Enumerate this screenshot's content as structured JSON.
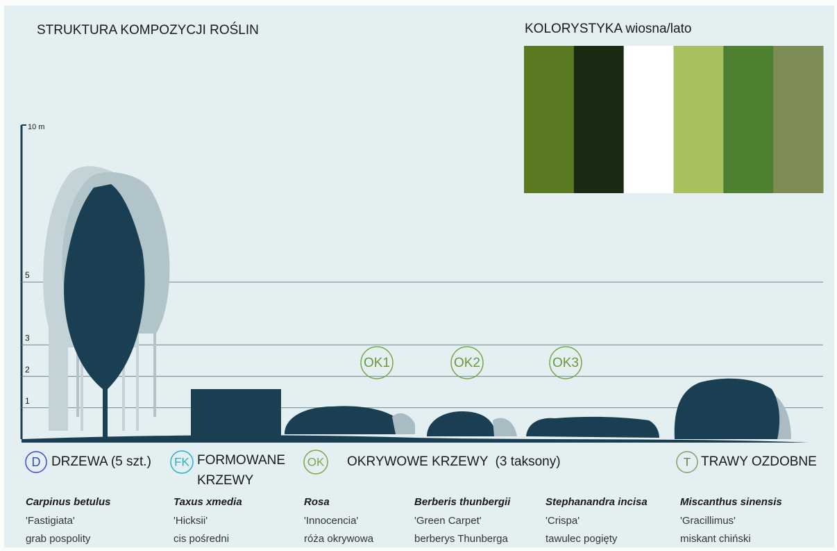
{
  "title": "STRUKTURA KOMPOZYCJI ROŚLIN",
  "palette": {
    "title": "KOLORYSTYKA wiosna/lato",
    "colors": [
      "#5a7a22",
      "#1b2a12",
      "#ffffff",
      "#a8c060",
      "#4e8032",
      "#7e8c56"
    ]
  },
  "scale": {
    "ticks": [
      {
        "value": 10,
        "label": "10 m"
      },
      5,
      3,
      2,
      1
    ]
  },
  "markers": [
    "OK1",
    "OK2",
    "OK3"
  ],
  "groups": [
    {
      "badge": "D",
      "label": "DRZEWA (5 szt.)"
    },
    {
      "badge": "FK",
      "label": [
        "FORMOWANE",
        "KRZEWY"
      ]
    },
    {
      "badge": "OK",
      "label": "OKRYWOWE KRZEWY  (3 taksony)"
    },
    {
      "badge": "T",
      "label": "TRAWY OZDOBNE"
    }
  ],
  "plants": [
    {
      "latin": "Carpinus betulus",
      "cultivar": "'Fastigiata'",
      "common": "grab pospolity"
    },
    {
      "latin": "Taxus xmedia",
      "cultivar": "'Hicksii'",
      "common": "cis pośredni"
    },
    {
      "latin": "Rosa",
      "cultivar": "'Innocencia'",
      "common": "róża okrywowa"
    },
    {
      "latin": "Berberis thunbergii",
      "cultivar": "'Green Carpet'",
      "common": "berberys Thunberga"
    },
    {
      "latin": "Stephanandra incisa",
      "cultivar": "'Crispa'",
      "common": "tawulec pogięty"
    },
    {
      "latin": "Miscanthus sinensis",
      "cultivar": "'Gracillimus'",
      "common": "miskant chiński"
    }
  ]
}
